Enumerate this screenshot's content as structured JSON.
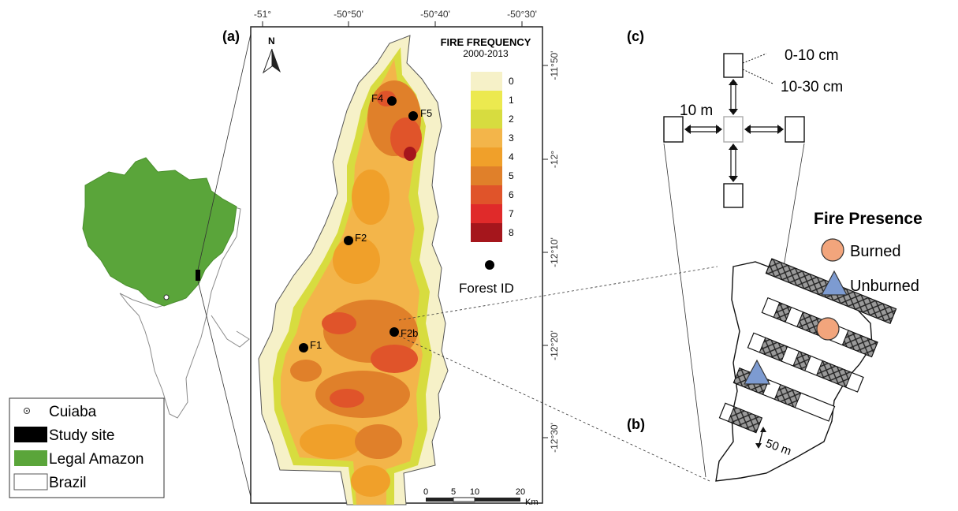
{
  "panel_labels": {
    "a": "(a)",
    "b": "(b)",
    "c": "(c)"
  },
  "north_arrow": "N",
  "top_ticks": [
    "-51°",
    "-50°50'",
    "-50°40'",
    "-50°30'"
  ],
  "right_ticks": [
    "-11°50'",
    "-12°",
    "-12°10'",
    "-12°20'",
    "-12°30'"
  ],
  "fire_legend": {
    "title": "FIRE FREQUENCY",
    "subtitle": "2000-2013",
    "classes": [
      {
        "label": "0",
        "color": "#f6f1c8"
      },
      {
        "label": "1",
        "color": "#ece94f"
      },
      {
        "label": "2",
        "color": "#d7dc3f"
      },
      {
        "label": "3",
        "color": "#f3b54a"
      },
      {
        "label": "4",
        "color": "#f0a02a"
      },
      {
        "label": "5",
        "color": "#e0802a"
      },
      {
        "label": "6",
        "color": "#e0542a"
      },
      {
        "label": "7",
        "color": "#e02a2a"
      },
      {
        "label": "8",
        "color": "#a5161c"
      }
    ],
    "forest_id_label": "Forest ID"
  },
  "forests": [
    "F1",
    "F2",
    "F2b",
    "F4",
    "F5"
  ],
  "scale_bar": {
    "ticks": [
      "0",
      "5",
      "10",
      "20"
    ],
    "unit": "Km"
  },
  "inset_legend": {
    "items": [
      {
        "label": "Cuiaba"
      },
      {
        "label": "Study site",
        "color": "#000000"
      },
      {
        "label": "Legal Amazon",
        "color": "#5aa53a"
      },
      {
        "label": "Brazil",
        "color": "#ffffff"
      }
    ]
  },
  "plot_design": {
    "depth1": "0-10 cm",
    "depth2": "10-30 cm",
    "distance": "10 m",
    "transect_spacing": "50 m"
  },
  "fire_presence": {
    "title": "Fire Presence",
    "burned": {
      "label": "Burned",
      "color": "#f2a57c"
    },
    "unburned": {
      "label": "Unburned",
      "color": "#7d9bd1"
    }
  }
}
